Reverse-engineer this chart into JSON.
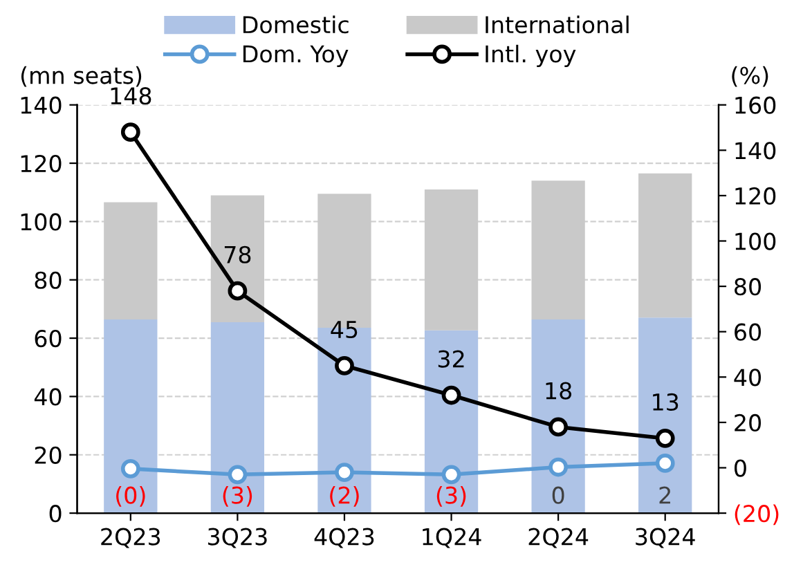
{
  "chart_data": {
    "type": "bar",
    "stacked": true,
    "ylabel": "(mn seats)",
    "y2label": "(%)",
    "categories": [
      "2Q23",
      "3Q23",
      "4Q23",
      "1Q24",
      "2Q24",
      "3Q24"
    ],
    "series": [
      {
        "name": "Domestic",
        "color": "#aec3e6",
        "values": [
          66.4,
          65.5,
          63.6,
          62.7,
          66.4,
          67.1
        ]
      },
      {
        "name": "International",
        "color": "#c9c9c9",
        "values": [
          40.2,
          43.5,
          45.9,
          48.3,
          47.6,
          49.4
        ]
      },
      {
        "name": "Dom. Yoy",
        "type": "line",
        "axis": "y2",
        "color": "#5b9bd5",
        "values": [
          -0.4,
          -3,
          -2,
          -3,
          0.3,
          2
        ],
        "value_labels": [
          "(0)",
          "(3)",
          "(2)",
          "(3)",
          "0",
          "2"
        ]
      },
      {
        "name": "Intl. yoy",
        "type": "line",
        "axis": "y2",
        "color": "#000000",
        "values": [
          148,
          78,
          45,
          32,
          18,
          13
        ],
        "value_labels": [
          "148",
          "78",
          "45",
          "32",
          "18",
          "13"
        ]
      }
    ],
    "ylim": [
      0,
      140
    ],
    "yticks": [
      0,
      20,
      40,
      60,
      80,
      100,
      120,
      140
    ],
    "y2lim": [
      -20,
      160
    ],
    "y2ticks": [
      {
        "value": -20,
        "label": "(20)"
      },
      0,
      20,
      40,
      60,
      80,
      100,
      120,
      140,
      160
    ],
    "grid": "y",
    "legend": "top",
    "marker": "circle",
    "line_style": "solid"
  }
}
